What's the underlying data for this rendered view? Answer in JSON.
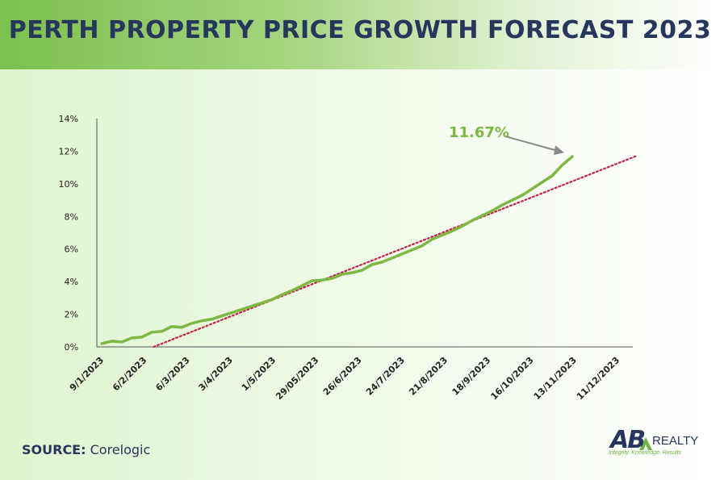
{
  "header": {
    "title": "PERTH PROPERTY PRICE GROWTH FORECAST 2023"
  },
  "source": {
    "label": "SOURCE:",
    "value": "Corelogic"
  },
  "logo": {
    "ab": "AB",
    "realty": "REALTY",
    "tagline": "Integrity. Knowledge. Results"
  },
  "colors": {
    "series": "#7cb843",
    "trend": "#c0264a",
    "title": "#27365d",
    "annotation_arrow": "#8a8a8a"
  },
  "chart_data": {
    "type": "line",
    "title": "",
    "xlabel": "",
    "ylabel": "",
    "ylim": [
      0,
      14
    ],
    "y_ticks": [
      "0%",
      "2%",
      "4%",
      "6%",
      "8%",
      "10%",
      "12%",
      "14%"
    ],
    "x_tick_labels": [
      "9/1/2023",
      "6/2/2023",
      "6/3/2023",
      "3/4/2023",
      "1/5/2023",
      "29/05/2023",
      "26/6/2023",
      "24/7/2023",
      "21/8/2023",
      "18/9/2023",
      "16/10/2023",
      "13/11/2023",
      "11/12/2023"
    ],
    "grid": false,
    "series": [
      {
        "values": [
          0.2,
          0.35,
          0.3,
          0.55,
          0.6,
          0.9,
          0.95,
          1.25,
          1.2,
          1.45,
          1.6,
          1.7,
          1.9,
          2.1,
          2.3,
          2.5,
          2.7,
          2.9,
          3.2,
          3.45,
          3.75,
          4.05,
          4.1,
          4.2,
          4.45,
          4.55,
          4.7,
          5.05,
          5.2,
          5.45,
          5.7,
          5.95,
          6.2,
          6.6,
          6.85,
          7.1,
          7.4,
          7.75,
          8.05,
          8.35,
          8.7,
          9.0,
          9.3,
          9.7,
          10.1,
          10.5,
          11.15,
          11.67
        ]
      },
      {
        "name": "trend",
        "style": "dotted",
        "start": {
          "x": "6/2/2023",
          "y": 0
        },
        "end": {
          "x": "11/12/2023",
          "y": 11.7
        }
      }
    ],
    "annotations": [
      {
        "text": "11.67%",
        "points_to": "last data point"
      }
    ]
  }
}
